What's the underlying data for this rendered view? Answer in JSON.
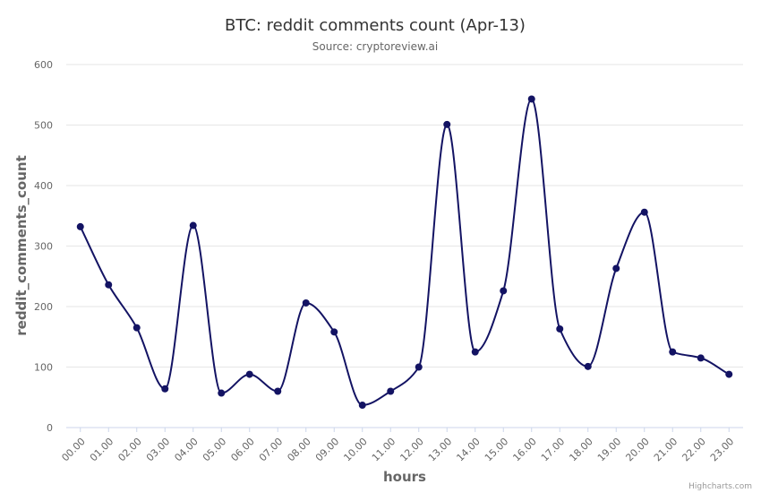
{
  "chart_data": {
    "type": "line",
    "title": "BTC: reddit comments count (Apr-13)",
    "subtitle": "Source: cryptoreview.ai",
    "xlabel": "hours",
    "ylabel": "reddit_comments_count",
    "credits": "Highcharts.com",
    "ylim": [
      0,
      600
    ],
    "yticks": [
      0,
      100,
      200,
      300,
      400,
      500,
      600
    ],
    "grid": true,
    "line_color": "#131363",
    "categories": [
      "00.00",
      "01.00",
      "02.00",
      "03.00",
      "04.00",
      "05.00",
      "06.00",
      "07.00",
      "08.00",
      "09.00",
      "10.00",
      "11.00",
      "12.00",
      "13.00",
      "14.00",
      "15.00",
      "16.00",
      "17.00",
      "18.00",
      "19.00",
      "20.00",
      "21.00",
      "22.00",
      "23.00"
    ],
    "series": [
      {
        "values": [
          332,
          236,
          165,
          64,
          334,
          57,
          88,
          60,
          206,
          158,
          37,
          60,
          100,
          501,
          125,
          226,
          543,
          163,
          101,
          263,
          356,
          125,
          115,
          88
        ]
      }
    ]
  }
}
